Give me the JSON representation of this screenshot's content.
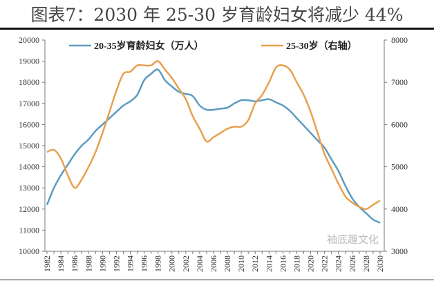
{
  "title": "图表7：2030 年 25-30 岁育龄妇女将减少 44%",
  "watermark": "袖底趣文化",
  "chart_data": {
    "type": "line",
    "title": "图表7：2030 年 25-30 岁育龄妇女将减少 44%",
    "x": [
      1982,
      1983,
      1984,
      1985,
      1986,
      1987,
      1988,
      1989,
      1990,
      1991,
      1992,
      1993,
      1994,
      1995,
      1996,
      1997,
      1998,
      1999,
      2000,
      2001,
      2002,
      2003,
      2004,
      2005,
      2006,
      2007,
      2008,
      2009,
      2010,
      2011,
      2012,
      2013,
      2014,
      2015,
      2016,
      2017,
      2018,
      2019,
      2020,
      2021,
      2022,
      2023,
      2024,
      2025,
      2026,
      2027,
      2028,
      2029,
      2030
    ],
    "xticks": [
      "1982",
      "1984",
      "1986",
      "1988",
      "1990",
      "1992",
      "1994",
      "1996",
      "1998",
      "2000",
      "2002",
      "2004",
      "2006",
      "2008",
      "2010",
      "2012",
      "2014",
      "2016",
      "2018",
      "2020",
      "2022",
      "2024",
      "2026",
      "2028",
      "2030"
    ],
    "series": [
      {
        "name": "20-35岁育龄妇女（万人）",
        "axis": "left",
        "color": "#5b9bc0",
        "values": [
          12200,
          13000,
          13600,
          14100,
          14600,
          15000,
          15300,
          15700,
          16000,
          16300,
          16600,
          16900,
          17100,
          17400,
          18100,
          18400,
          18600,
          18100,
          17800,
          17550,
          17450,
          17350,
          16900,
          16700,
          16700,
          16750,
          16800,
          17000,
          17150,
          17150,
          17100,
          17150,
          17200,
          17050,
          16900,
          16650,
          16300,
          15950,
          15600,
          15250,
          14900,
          14350,
          13800,
          13100,
          12500,
          12100,
          11800,
          11500,
          11350
        ]
      },
      {
        "name": "25-30岁（右轴）",
        "axis": "right",
        "color": "#e8a04e",
        "values": [
          5350,
          5400,
          5200,
          4800,
          4500,
          4700,
          5000,
          5350,
          5800,
          6300,
          6800,
          7200,
          7250,
          7400,
          7400,
          7400,
          7500,
          7300,
          7100,
          6850,
          6600,
          6200,
          5900,
          5600,
          5700,
          5800,
          5900,
          5950,
          5950,
          6100,
          6500,
          6700,
          7000,
          7350,
          7400,
          7300,
          7000,
          6700,
          6300,
          5800,
          5300,
          4950,
          4600,
          4300,
          4150,
          4050,
          4000,
          4100,
          4200
        ]
      }
    ],
    "yleft": {
      "range": [
        10000,
        20000
      ],
      "ticks": [
        "10000",
        "11000",
        "12000",
        "13000",
        "14000",
        "15000",
        "16000",
        "17000",
        "18000",
        "19000",
        "20000"
      ]
    },
    "yright": {
      "range": [
        3000,
        8000
      ],
      "ticks": [
        "3000",
        "4000",
        "5000",
        "6000",
        "7000",
        "8000"
      ]
    },
    "legend": "top",
    "grid": false
  }
}
